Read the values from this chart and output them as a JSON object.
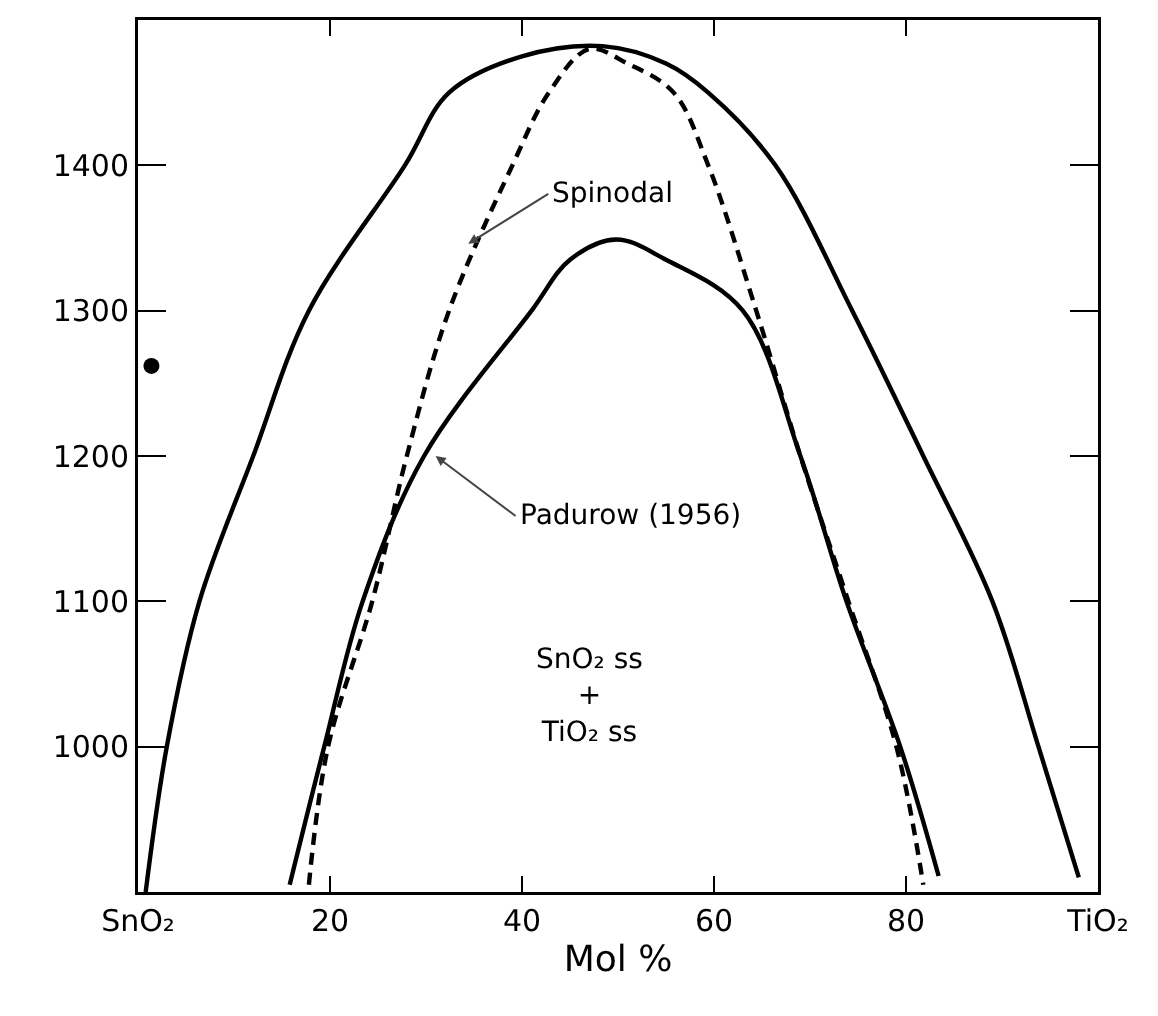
{
  "chart_data": {
    "type": "line",
    "xlabel": "Mol %",
    "xlim": [
      0,
      100
    ],
    "xticks": [
      {
        "value": 0,
        "label": "SnO₂"
      },
      20,
      40,
      60,
      80,
      {
        "value": 100,
        "label": "TiO₂"
      }
    ],
    "ylim": [
      900,
      1500
    ],
    "yticks": [
      1000,
      1100,
      1200,
      1300,
      1400
    ],
    "grid": false,
    "marker": "none",
    "series": [
      {
        "color": "#000000",
        "line_style": "solid",
        "x": [
          0.8,
          3,
          6.4,
          12,
          17.8,
          27.8,
          32.4,
          40,
          48.4,
          55,
          59.4,
          66.4,
          74.4,
          81.8,
          89,
          93.8,
          98
        ],
        "values": [
          900,
          1000,
          1100,
          1200,
          1300,
          1400,
          1450,
          1475,
          1482,
          1470,
          1450,
          1400,
          1300,
          1200,
          1100,
          1000,
          910
        ]
      },
      {
        "color": "#000000",
        "line_style": "solid",
        "x": [
          15.8,
          19.4,
          23.4,
          29.8,
          41,
          45,
          49.8,
          55,
          63,
          69,
          73.8,
          79.4,
          83.4
        ],
        "values": [
          905,
          1000,
          1100,
          1200,
          1300,
          1335,
          1349,
          1335,
          1300,
          1200,
          1100,
          1000,
          911
        ]
      },
      {
        "color": "#000000",
        "line_style": "dashed",
        "x": [
          17.8,
          19.8,
          24.4,
          28,
          32.4,
          39,
          42.8,
          47,
          51,
          55.8,
          59.4,
          64.4,
          69,
          74,
          79,
          81.8
        ],
        "values": [
          905,
          1000,
          1100,
          1200,
          1300,
          1400,
          1450,
          1480,
          1470,
          1450,
          1400,
          1300,
          1200,
          1100,
          1000,
          905
        ]
      },
      {
        "type": "scatter",
        "color": "#000000",
        "marker": "circle",
        "x": [
          1.4
        ],
        "values": [
          1262
        ]
      }
    ],
    "annotations": [
      {
        "text": "Spinodal",
        "x": 34.4,
        "y": 1346
      },
      {
        "text": "Padurow (1956)",
        "x": 31,
        "y": 1200
      },
      "SnO₂ ss\n+\nTiO₂ ss"
    ]
  }
}
